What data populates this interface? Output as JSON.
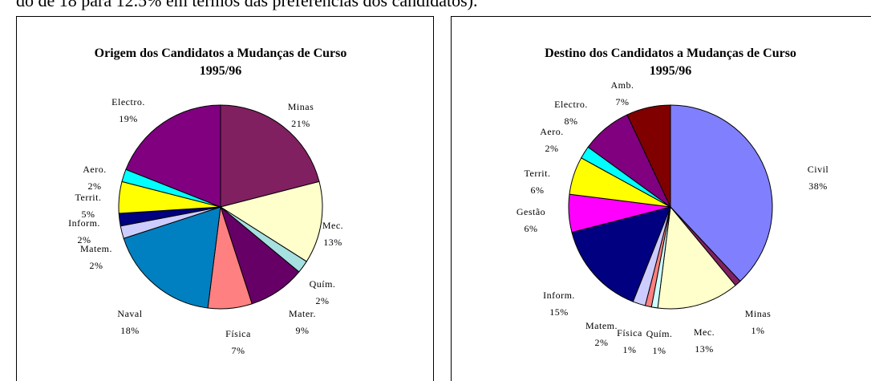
{
  "text": "do de 18 para 12.5% em termos das preferências dos candidatos).",
  "chart_data": [
    {
      "type": "pie",
      "title": "Origem dos Candidatos a Mudanças de Curso 1995/96",
      "categories": [
        "Minas",
        "Mec.",
        "Quím.",
        "Mater.",
        "Física",
        "Naval",
        "Matem.",
        "Inform.",
        "Territ.",
        "Aero.",
        "Electro."
      ],
      "values": [
        21,
        13,
        2,
        9,
        7,
        18,
        2,
        2,
        5,
        2,
        19
      ],
      "value_labels": [
        "21%",
        "13%",
        "2%",
        "9%",
        "7%",
        "18%",
        "2%",
        "2%",
        "5%",
        "2%",
        "19%"
      ],
      "colors": [
        "#802060",
        "#FFFFCC",
        "#A6E0E0",
        "#660066",
        "#FF8080",
        "#0080C0",
        "#CCCCFF",
        "#000080",
        "#FFFF00",
        "#00FFFF",
        "#800080"
      ]
    },
    {
      "type": "pie",
      "title": "Destino dos Candidatos a Mudanças de Curso 1995/96",
      "categories": [
        "Civil",
        "Minas",
        "Mec.",
        "Quím.",
        "Física",
        "Matem.",
        "Inform.",
        "Gestão",
        "Territ.",
        "Aero.",
        "Electro.",
        "Amb."
      ],
      "values": [
        38,
        1,
        13,
        1,
        1,
        2,
        15,
        6,
        6,
        2,
        8,
        7
      ],
      "value_labels": [
        "38%",
        "1%",
        "13%",
        "1%",
        "1%",
        "2%",
        "15%",
        "6%",
        "6%",
        "2%",
        "8%",
        "7%"
      ],
      "colors": [
        "#8080FF",
        "#802060",
        "#FFFFCC",
        "#CCFFFF",
        "#FF8080",
        "#CCCCFF",
        "#000080",
        "#FF00FF",
        "#FFFF00",
        "#00FFFF",
        "#800080",
        "#800000"
      ]
    }
  ]
}
